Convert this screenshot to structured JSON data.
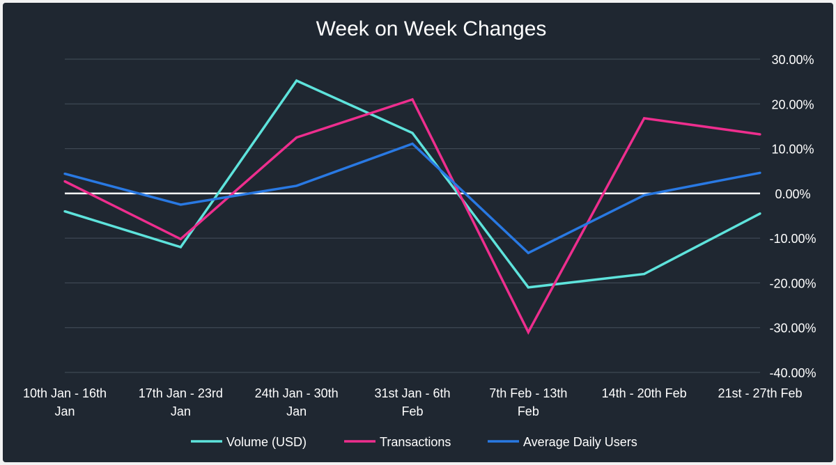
{
  "chart_data": {
    "type": "line",
    "title": "Week on Week Changes",
    "categories": [
      [
        "10th Jan - 16th",
        "Jan"
      ],
      [
        "17th Jan - 23rd",
        "Jan"
      ],
      [
        "24th Jan - 30th",
        "Jan"
      ],
      [
        "31st Jan -   6th",
        "Feb"
      ],
      [
        "7th Feb -   13th",
        "Feb"
      ],
      [
        "14th - 20th Feb"
      ],
      [
        "21st - 27th Feb"
      ]
    ],
    "y_ticks": [
      "30.00%",
      "20.00%",
      "10.00%",
      "0.00%",
      "-10.00%",
      "-20.00%",
      "-30.00%",
      "-40.00%"
    ],
    "ylim": [
      -40,
      30
    ],
    "grid": true,
    "zero_line": true,
    "legend_position": "bottom",
    "series": [
      {
        "name": "Volume (USD)",
        "color": "#5ee3dc",
        "values": [
          -4,
          -12,
          25.2,
          13.5,
          -21,
          -18,
          -4.5
        ]
      },
      {
        "name": "Transactions",
        "color": "#ee2e8e",
        "values": [
          2.7,
          -10.2,
          12.5,
          21,
          -31,
          16.8,
          13.2
        ]
      },
      {
        "name": "Average Daily Users",
        "color": "#2979e3",
        "values": [
          4.4,
          -2.5,
          1.7,
          11.1,
          -13.3,
          -0.4,
          4.6
        ]
      }
    ],
    "colors": {
      "background": "#1f2731",
      "grid": "#46505c",
      "zero_line": "#ffffff",
      "text": "#ffffff"
    }
  }
}
